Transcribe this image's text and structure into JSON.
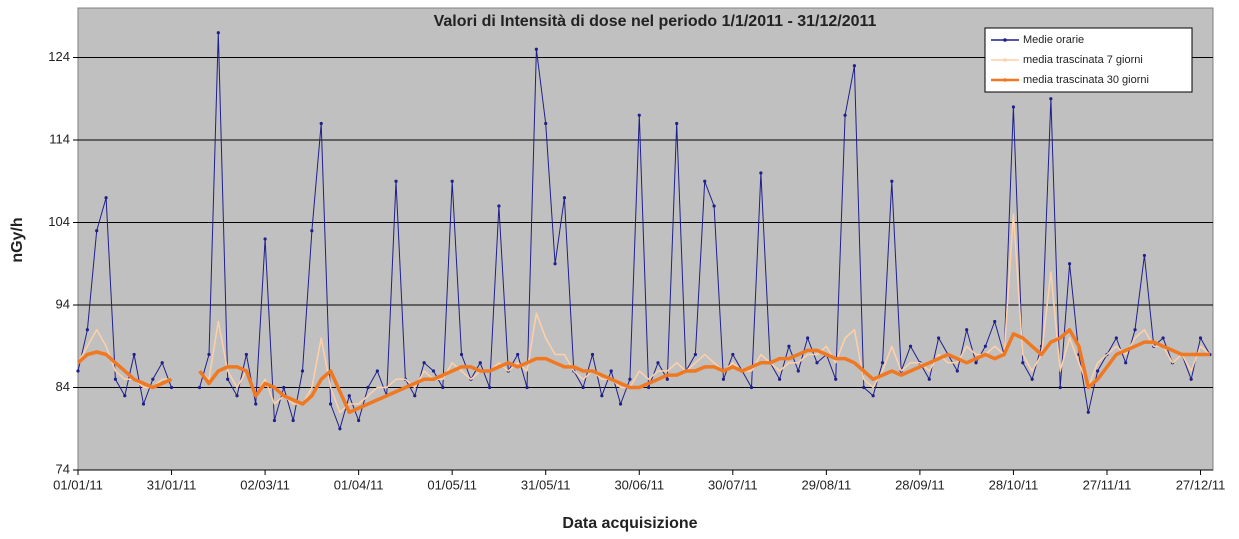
{
  "chart_data": {
    "type": "line",
    "title": "Valori di Intensità di dose nel periodo 1/1/2011 - 31/12/2011",
    "x_label": "Data acquisizione",
    "y_label": "nGy/h",
    "x": [
      "01/01/11",
      "04/01/11",
      "07/01/11",
      "10/01/11",
      "13/01/11",
      "16/01/11",
      "19/01/11",
      "22/01/11",
      "25/01/11",
      "28/01/11",
      "31/01/11",
      "03/02/11",
      "06/02/11",
      "09/02/11",
      "12/02/11",
      "15/02/11",
      "18/02/11",
      "21/02/11",
      "24/02/11",
      "27/02/11",
      "02/03/11",
      "05/03/11",
      "08/03/11",
      "11/03/11",
      "14/03/11",
      "17/03/11",
      "20/03/11",
      "23/03/11",
      "26/03/11",
      "29/03/11",
      "01/04/11",
      "04/04/11",
      "07/04/11",
      "10/04/11",
      "13/04/11",
      "16/04/11",
      "19/04/11",
      "22/04/11",
      "25/04/11",
      "28/04/11",
      "01/05/11",
      "04/05/11",
      "07/05/11",
      "10/05/11",
      "13/05/11",
      "16/05/11",
      "19/05/11",
      "22/05/11",
      "25/05/11",
      "28/05/11",
      "31/05/11",
      "03/06/11",
      "06/06/11",
      "09/06/11",
      "12/06/11",
      "15/06/11",
      "18/06/11",
      "21/06/11",
      "24/06/11",
      "27/06/11",
      "30/06/11",
      "03/07/11",
      "06/07/11",
      "09/07/11",
      "12/07/11",
      "15/07/11",
      "18/07/11",
      "21/07/11",
      "24/07/11",
      "27/07/11",
      "30/07/11",
      "02/08/11",
      "05/08/11",
      "08/08/11",
      "11/08/11",
      "14/08/11",
      "17/08/11",
      "20/08/11",
      "23/08/11",
      "26/08/11",
      "29/08/11",
      "01/09/11",
      "04/09/11",
      "07/09/11",
      "10/09/11",
      "13/09/11",
      "16/09/11",
      "19/09/11",
      "22/09/11",
      "25/09/11",
      "28/09/11",
      "01/10/11",
      "04/10/11",
      "07/10/11",
      "10/10/11",
      "13/10/11",
      "16/10/11",
      "19/10/11",
      "22/10/11",
      "25/10/11",
      "28/10/11",
      "31/10/11",
      "03/11/11",
      "06/11/11",
      "09/11/11",
      "12/11/11",
      "15/11/11",
      "18/11/11",
      "21/11/11",
      "24/11/11",
      "27/11/11",
      "30/11/11",
      "03/12/11",
      "06/12/11",
      "09/12/11",
      "12/12/11",
      "15/12/11",
      "18/12/11",
      "21/12/11",
      "24/12/11",
      "27/12/11",
      "30/12/11"
    ],
    "series": [
      {
        "name": "Medie orarie",
        "color": "#1f1f8a",
        "markers": true,
        "values": [
          86,
          91,
          103,
          107,
          85,
          83,
          88,
          82,
          85,
          87,
          84,
          null,
          null,
          84,
          88,
          127,
          85,
          83,
          88,
          82,
          102,
          80,
          84,
          80,
          86,
          103,
          116,
          82,
          79,
          83,
          80,
          84,
          86,
          83,
          109,
          85,
          83,
          87,
          86,
          84,
          109,
          88,
          85,
          87,
          84,
          106,
          86,
          88,
          84,
          125,
          116,
          99,
          107,
          86,
          84,
          88,
          83,
          86,
          82,
          85,
          117,
          84,
          87,
          85,
          116,
          86,
          88,
          109,
          106,
          85,
          88,
          86,
          84,
          110,
          87,
          85,
          89,
          86,
          90,
          87,
          88,
          85,
          117,
          123,
          84,
          83,
          87,
          109,
          86,
          89,
          87,
          85,
          90,
          88,
          86,
          91,
          87,
          89,
          92,
          88,
          118,
          87,
          85,
          89,
          119,
          84,
          99,
          88,
          81,
          86,
          88,
          90,
          87,
          91,
          100,
          89,
          90,
          87,
          88,
          85,
          90,
          88
        ]
      },
      {
        "name": "media trascinata 7 giorni",
        "color": "#ffd0a8",
        "markers": false,
        "values": [
          87,
          89,
          91,
          89,
          86,
          85,
          85,
          84,
          84,
          85,
          85,
          null,
          null,
          86,
          85,
          92,
          86,
          84,
          86,
          83,
          85,
          82,
          83,
          82,
          82,
          84,
          90,
          84,
          81,
          82,
          82,
          83,
          84,
          84,
          85,
          85,
          84,
          86,
          85,
          85,
          87,
          86,
          85,
          86,
          86,
          87,
          86,
          87,
          86,
          93,
          90,
          88,
          88,
          86,
          85,
          86,
          85,
          85,
          84,
          84,
          86,
          85,
          86,
          86,
          87,
          86,
          87,
          88,
          87,
          86,
          87,
          86,
          86,
          88,
          87,
          86,
          87,
          87,
          88,
          88,
          89,
          87,
          90,
          91,
          85,
          84,
          86,
          89,
          86,
          87,
          87,
          86,
          88,
          87,
          87,
          89,
          88,
          88,
          89,
          88,
          105,
          88,
          86,
          88,
          98,
          86,
          90,
          87,
          84,
          87,
          88,
          89,
          88,
          90,
          91,
          89,
          89,
          87,
          88,
          86,
          89,
          88
        ]
      },
      {
        "name": "media trascinata 30 giorni",
        "color": "#f07820",
        "markers": false,
        "values": [
          87,
          88,
          88.3,
          88,
          87,
          86,
          85,
          84.5,
          84,
          84.5,
          85,
          null,
          null,
          86,
          84.5,
          86,
          86.5,
          86.5,
          86,
          83,
          84.5,
          84,
          83,
          82.5,
          82,
          83,
          85,
          86,
          83.5,
          81,
          81.5,
          82,
          82.5,
          83,
          83.5,
          84,
          84.5,
          85,
          85,
          85.5,
          86,
          86.5,
          86.5,
          86,
          86,
          86.5,
          87,
          86.5,
          87,
          87.5,
          87.5,
          87,
          86.5,
          86.5,
          86,
          86,
          85.5,
          85,
          84.5,
          84,
          84,
          84.5,
          85,
          85.5,
          85.5,
          86,
          86,
          86.5,
          86.5,
          86,
          86.5,
          86,
          86.5,
          87,
          87,
          87.5,
          87.5,
          88,
          88.5,
          88.5,
          88,
          87.5,
          87.5,
          87,
          86,
          85,
          85.5,
          86,
          85.5,
          86,
          86.5,
          87,
          87.5,
          88,
          87.5,
          87,
          87.5,
          88,
          87.5,
          88,
          90.5,
          90,
          89,
          88,
          89.5,
          90,
          91,
          89,
          84,
          85,
          86.5,
          88,
          88.5,
          89,
          89.5,
          89.5,
          89,
          88.5,
          88,
          88,
          88,
          88
        ]
      }
    ],
    "xlim": [
      "01/01/11",
      "31/12/11"
    ],
    "xticks": [
      "01/01/11",
      "31/01/11",
      "02/03/11",
      "01/04/11",
      "01/05/11",
      "31/05/11",
      "30/06/11",
      "30/07/11",
      "29/08/11",
      "28/09/11",
      "28/10/11",
      "27/11/11",
      "27/12/11"
    ],
    "ylim": [
      74,
      130
    ],
    "yticks": [
      74,
      84,
      94,
      104,
      114,
      124
    ],
    "grid": true,
    "legend": "upper right"
  }
}
